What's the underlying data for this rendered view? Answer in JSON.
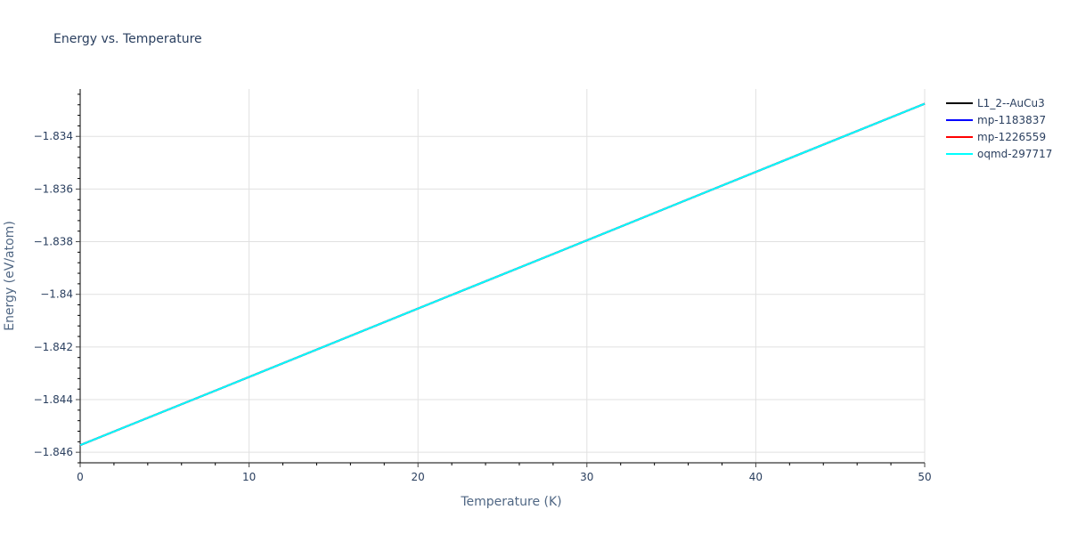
{
  "chart_data": {
    "type": "line",
    "title": "Energy vs. Temperature",
    "xlabel": "Temperature (K)",
    "ylabel": "Energy (eV/atom)",
    "xlim": [
      0,
      50
    ],
    "ylim": [
      -1.8464,
      -1.8322
    ],
    "x_ticks": [
      0,
      10,
      20,
      30,
      40,
      50
    ],
    "y_ticks": [
      -1.846,
      -1.844,
      -1.842,
      -1.84,
      -1.838,
      -1.836,
      -1.834
    ],
    "y_tick_labels": [
      "−1.846",
      "−1.844",
      "−1.842",
      "−1.84",
      "−1.838",
      "−1.836",
      "−1.834"
    ],
    "grid": true,
    "legend_position": "right",
    "series": [
      {
        "name": "L1_2--AuCu3",
        "color": "#000000",
        "x": [
          0,
          10,
          20,
          30,
          40,
          50
        ],
        "y": [
          -1.84573,
          -1.84314,
          -1.84054,
          -1.83795,
          -1.83535,
          -1.83276
        ]
      },
      {
        "name": "mp-1183837",
        "color": "#0000ff",
        "x": [
          0,
          10,
          20,
          30,
          40,
          50
        ],
        "y": [
          -1.84573,
          -1.84314,
          -1.84054,
          -1.83795,
          -1.83535,
          -1.83276
        ]
      },
      {
        "name": "mp-1226559",
        "color": "#ff0000",
        "x": [
          0,
          10,
          20,
          30,
          40,
          50
        ],
        "y": [
          -1.84573,
          -1.84314,
          -1.84054,
          -1.83795,
          -1.83535,
          -1.83276
        ]
      },
      {
        "name": "oqmd-297717",
        "color": "#00ffff",
        "x": [
          0,
          10,
          20,
          30,
          40,
          50
        ],
        "y": [
          -1.84573,
          -1.84314,
          -1.84054,
          -1.83795,
          -1.83535,
          -1.83276
        ]
      }
    ]
  },
  "legend": {
    "items": [
      {
        "label": "L1_2--AuCu3",
        "color": "#000000"
      },
      {
        "label": "mp-1183837",
        "color": "#0000ff"
      },
      {
        "label": "mp-1226559",
        "color": "#ff0000"
      },
      {
        "label": "oqmd-297717",
        "color": "#00ffff"
      }
    ]
  }
}
